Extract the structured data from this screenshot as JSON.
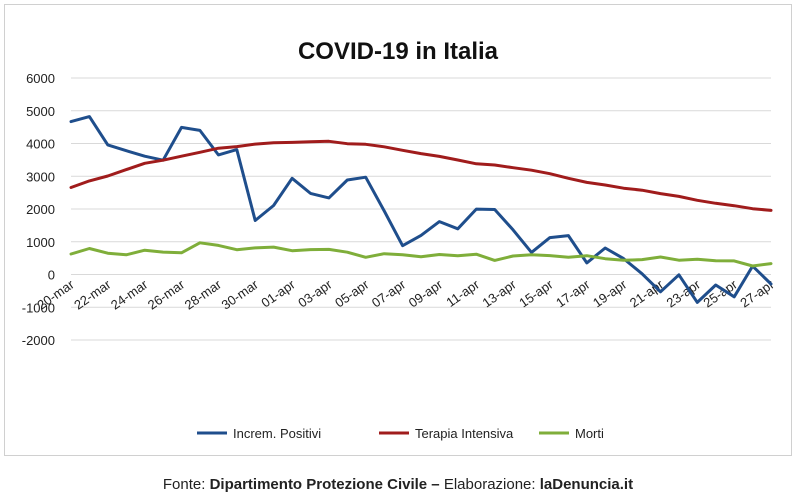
{
  "chart_data": {
    "type": "line",
    "title": "COVID-19 in Italia",
    "xlabel": "",
    "ylabel": "",
    "ylim": [
      -2000,
      6000
    ],
    "yticks": [
      -2000,
      -1000,
      0,
      1000,
      2000,
      3000,
      4000,
      5000,
      6000
    ],
    "grid": true,
    "legend_position": "bottom",
    "x": [
      "20-mar",
      "21-mar",
      "22-mar",
      "23-mar",
      "24-mar",
      "25-mar",
      "26-mar",
      "27-mar",
      "28-mar",
      "29-mar",
      "30-mar",
      "31-mar",
      "01-apr",
      "02-apr",
      "03-apr",
      "04-apr",
      "05-apr",
      "06-apr",
      "07-apr",
      "08-apr",
      "09-apr",
      "10-apr",
      "11-apr",
      "12-apr",
      "13-apr",
      "14-apr",
      "15-apr",
      "16-apr",
      "17-apr",
      "18-apr",
      "19-apr",
      "20-apr",
      "21-apr",
      "22-apr",
      "23-apr",
      "24-apr",
      "25-apr",
      "26-apr",
      "27-apr"
    ],
    "x_tick_labels": [
      "20-mar",
      "22-mar",
      "24-mar",
      "26-mar",
      "28-mar",
      "30-mar",
      "01-apr",
      "03-apr",
      "05-apr",
      "07-apr",
      "09-apr",
      "11-apr",
      "13-apr",
      "15-apr",
      "17-apr",
      "19-apr",
      "21-apr",
      "23-apr",
      "25-apr",
      "27-apr"
    ],
    "series": [
      {
        "name": "Increm. Positivi",
        "color": "#1f4e8c",
        "values": [
          4670,
          4821,
          3957,
          3780,
          3612,
          3491,
          4492,
          4401,
          3651,
          3815,
          1648,
          2107,
          2937,
          2477,
          2339,
          2886,
          2972,
          1941,
          880,
          1195,
          1615,
          1396,
          1996,
          1984,
          1363,
          675,
          1127,
          1189,
          355,
          809,
          486,
          20,
          -528,
          -10,
          -851,
          -321,
          -680,
          256,
          -290
        ]
      },
      {
        "name": "Terapia Intensiva",
        "color": "#a01c1c",
        "values": [
          2655,
          2857,
          3009,
          3204,
          3396,
          3489,
          3612,
          3732,
          3856,
          3906,
          3981,
          4023,
          4035,
          4053,
          4068,
          3994,
          3977,
          3898,
          3792,
          3693,
          3605,
          3497,
          3381,
          3343,
          3260,
          3186,
          3079,
          2936,
          2812,
          2733,
          2635,
          2573,
          2471,
          2384,
          2267,
          2173,
          2102,
          2009,
          1956
        ]
      },
      {
        "name": "Morti",
        "color": "#7fae3a",
        "values": [
          627,
          793,
          651,
          601,
          743,
          683,
          662,
          969,
          889,
          756,
          812,
          837,
          727,
          760,
          766,
          681,
          525,
          636,
          604,
          542,
          610,
          570,
          619,
          431,
          566,
          602,
          578,
          525,
          575,
          482,
          433,
          454,
          534,
          437,
          464,
          420,
          415,
          260,
          333
        ]
      }
    ]
  },
  "footer": {
    "prefix": "Fonte: ",
    "source": "Dipartimento Protezione Civile",
    "dash": " – ",
    "middle": "Elaborazione: ",
    "publisher": "laDenuncia.it"
  }
}
